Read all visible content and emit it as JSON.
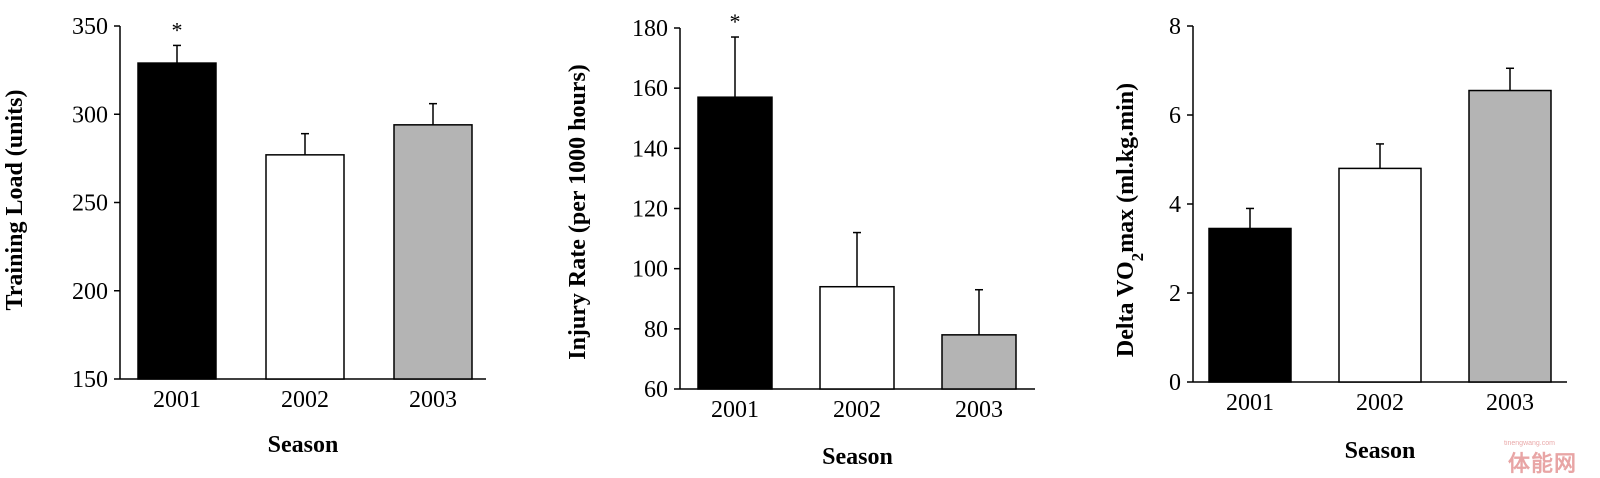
{
  "chart_data": [
    {
      "type": "bar",
      "xlabel": "Season",
      "ylabel": "Training Load (units)",
      "categories": [
        "2001",
        "2002",
        "2003"
      ],
      "values": [
        329,
        277,
        294
      ],
      "error": [
        10,
        12,
        12
      ],
      "colors": [
        "#000000",
        "#ffffff",
        "#b4b4b4"
      ],
      "annotations": [
        "*",
        "",
        ""
      ],
      "ylim": [
        150,
        350
      ],
      "yticks": [
        150,
        200,
        250,
        300,
        350
      ],
      "grid": false,
      "legend": "none"
    },
    {
      "type": "bar",
      "xlabel": "Season",
      "ylabel": "Injury Rate (per 1000 hours)",
      "categories": [
        "2001",
        "2002",
        "2003"
      ],
      "values": [
        157,
        94,
        78
      ],
      "error": [
        20,
        18,
        15
      ],
      "colors": [
        "#000000",
        "#ffffff",
        "#b4b4b4"
      ],
      "annotations": [
        "*",
        "",
        ""
      ],
      "ylim": [
        60,
        180
      ],
      "yticks": [
        60,
        80,
        100,
        120,
        140,
        160,
        180
      ],
      "grid": false,
      "legend": "none"
    },
    {
      "type": "bar",
      "xlabel": "Season",
      "ylabel": "Delta VO2max (ml.kg.min)",
      "ylabel_parts": [
        "Delta VO",
        "2",
        "max (ml.kg.min)"
      ],
      "categories": [
        "2001",
        "2002",
        "2003"
      ],
      "values": [
        3.45,
        4.8,
        6.55
      ],
      "error": [
        0.45,
        0.55,
        0.5
      ],
      "colors": [
        "#000000",
        "#ffffff",
        "#b4b4b4"
      ],
      "annotations": [
        "",
        "",
        ""
      ],
      "ylim": [
        0,
        8
      ],
      "yticks": [
        0,
        2,
        4,
        6,
        8
      ],
      "grid": false,
      "legend": "none"
    }
  ],
  "watermark": {
    "text": "体能网",
    "sub": "tinengwang.com"
  }
}
